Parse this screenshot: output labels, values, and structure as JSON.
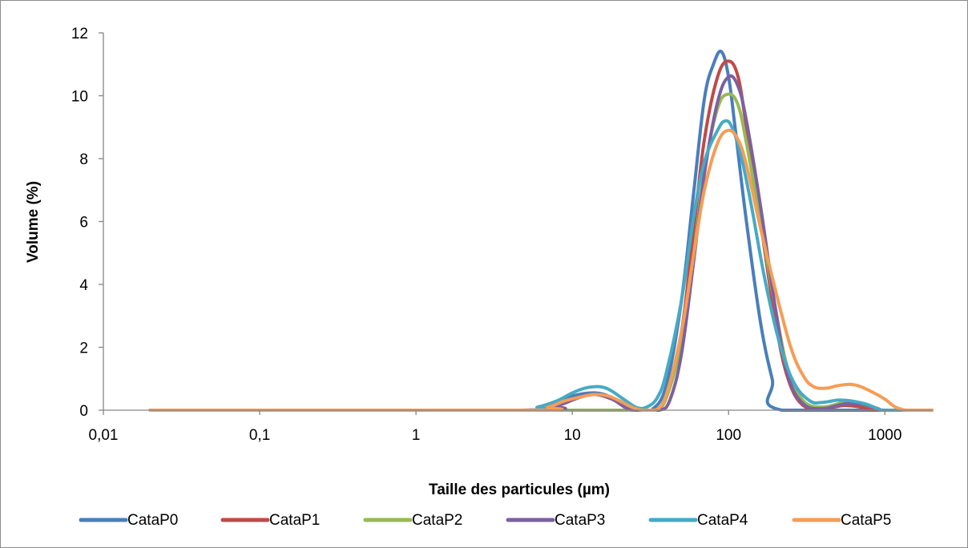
{
  "chart_data": {
    "type": "line",
    "xlabel": "Taille des particules (µm)",
    "ylabel": "Volume (%)",
    "xscale": "log",
    "xlim": [
      0.01,
      2000
    ],
    "ylim": [
      0,
      12
    ],
    "x_tick_labels": [
      "0,01",
      "0,1",
      "1",
      "10",
      "100",
      "1000"
    ],
    "x_tick_values": [
      0.01,
      0.1,
      1,
      10,
      100,
      1000
    ],
    "y_tick_labels": [
      "0",
      "2",
      "4",
      "6",
      "8",
      "10",
      "12"
    ],
    "y_tick_values": [
      0,
      2,
      4,
      6,
      8,
      10,
      12
    ],
    "grid": false,
    "legend_position": "bottom",
    "series": [
      {
        "name": "CataP0",
        "color": "#4a7ebb",
        "points": [
          [
            0.02,
            0
          ],
          [
            4.5,
            0
          ],
          [
            7,
            0.15
          ],
          [
            10,
            0.45
          ],
          [
            14,
            0.55
          ],
          [
            18,
            0.4
          ],
          [
            22,
            0.12
          ],
          [
            26,
            0
          ],
          [
            32,
            0
          ],
          [
            40,
            0.8
          ],
          [
            50,
            3.5
          ],
          [
            60,
            7
          ],
          [
            70,
            9.9
          ],
          [
            80,
            11
          ],
          [
            90,
            11.4
          ],
          [
            100,
            10.6
          ],
          [
            110,
            9
          ],
          [
            130,
            6
          ],
          [
            160,
            2.8
          ],
          [
            190,
            1
          ],
          [
            220,
            0
          ],
          [
            2000,
            0
          ]
        ]
      },
      {
        "name": "CataP1",
        "color": "#be4b48",
        "points": [
          [
            0.02,
            0
          ],
          [
            5,
            0
          ],
          [
            8,
            0.15
          ],
          [
            11,
            0.4
          ],
          [
            14,
            0.5
          ],
          [
            18,
            0.35
          ],
          [
            22,
            0.08
          ],
          [
            26,
            0
          ],
          [
            34,
            0
          ],
          [
            40,
            0.5
          ],
          [
            50,
            2.5
          ],
          [
            60,
            5.8
          ],
          [
            70,
            8.6
          ],
          [
            85,
            10.6
          ],
          [
            100,
            11.1
          ],
          [
            115,
            10.6
          ],
          [
            130,
            9
          ],
          [
            160,
            6
          ],
          [
            200,
            2.8
          ],
          [
            240,
            1
          ],
          [
            300,
            0.15
          ],
          [
            400,
            0.05
          ],
          [
            550,
            0.15
          ],
          [
            700,
            0.1
          ],
          [
            900,
            0
          ],
          [
            2000,
            0
          ]
        ]
      },
      {
        "name": "CataP2",
        "color": "#98b954",
        "points": [
          [
            0.02,
            0
          ],
          [
            10,
            0
          ],
          [
            14,
            0
          ],
          [
            18,
            0
          ],
          [
            26,
            0
          ],
          [
            34,
            0
          ],
          [
            40,
            0.4
          ],
          [
            50,
            2.2
          ],
          [
            60,
            5
          ],
          [
            70,
            7.6
          ],
          [
            85,
            9.6
          ],
          [
            100,
            10.05
          ],
          [
            115,
            9.7
          ],
          [
            130,
            8.5
          ],
          [
            160,
            6
          ],
          [
            200,
            3.2
          ],
          [
            240,
            1.3
          ],
          [
            300,
            0.3
          ],
          [
            400,
            0.1
          ],
          [
            550,
            0.25
          ],
          [
            700,
            0.2
          ],
          [
            900,
            0.05
          ],
          [
            1000,
            0
          ],
          [
            2000,
            0
          ]
        ]
      },
      {
        "name": "CataP3",
        "color": "#7d60a0",
        "points": [
          [
            0.02,
            0
          ],
          [
            5,
            0
          ],
          [
            8,
            0.15
          ],
          [
            11,
            0.4
          ],
          [
            14,
            0.5
          ],
          [
            18,
            0.35
          ],
          [
            22,
            0.08
          ],
          [
            26,
            0
          ],
          [
            36,
            0
          ],
          [
            42,
            0.3
          ],
          [
            50,
            1.8
          ],
          [
            60,
            4.8
          ],
          [
            70,
            7.5
          ],
          [
            85,
            9.8
          ],
          [
            100,
            10.6
          ],
          [
            115,
            10.3
          ],
          [
            130,
            9.2
          ],
          [
            160,
            6.5
          ],
          [
            200,
            3.2
          ],
          [
            240,
            1.1
          ],
          [
            300,
            0.2
          ],
          [
            400,
            0.05
          ],
          [
            550,
            0.2
          ],
          [
            700,
            0.2
          ],
          [
            900,
            0.05
          ],
          [
            1000,
            0
          ],
          [
            2000,
            0
          ]
        ]
      },
      {
        "name": "CataP4",
        "color": "#46aac5",
        "points": [
          [
            0.02,
            0
          ],
          [
            4.5,
            0
          ],
          [
            6,
            0.1
          ],
          [
            8,
            0.3
          ],
          [
            10,
            0.55
          ],
          [
            12,
            0.7
          ],
          [
            14,
            0.75
          ],
          [
            16,
            0.72
          ],
          [
            18,
            0.6
          ],
          [
            22,
            0.3
          ],
          [
            26,
            0.08
          ],
          [
            30,
            0.1
          ],
          [
            35,
            0.4
          ],
          [
            40,
            1.2
          ],
          [
            50,
            3.5
          ],
          [
            60,
            6.2
          ],
          [
            70,
            7.9
          ],
          [
            85,
            8.9
          ],
          [
            95,
            9.2
          ],
          [
            105,
            9.0
          ],
          [
            120,
            8.1
          ],
          [
            140,
            6.5
          ],
          [
            170,
            4.2
          ],
          [
            210,
            2.2
          ],
          [
            260,
            0.9
          ],
          [
            330,
            0.3
          ],
          [
            400,
            0.25
          ],
          [
            500,
            0.32
          ],
          [
            600,
            0.3
          ],
          [
            750,
            0.2
          ],
          [
            900,
            0.05
          ],
          [
            1000,
            0
          ],
          [
            2000,
            0
          ]
        ]
      },
      {
        "name": "CataP5",
        "color": "#f59d56",
        "points": [
          [
            0.02,
            0
          ],
          [
            5,
            0
          ],
          [
            7,
            0.1
          ],
          [
            9,
            0.3
          ],
          [
            12,
            0.45
          ],
          [
            14,
            0.5
          ],
          [
            17,
            0.45
          ],
          [
            20,
            0.3
          ],
          [
            24,
            0.1
          ],
          [
            28,
            0
          ],
          [
            34,
            0
          ],
          [
            40,
            0.5
          ],
          [
            50,
            2.5
          ],
          [
            60,
            5
          ],
          [
            70,
            7
          ],
          [
            85,
            8.5
          ],
          [
            100,
            8.9
          ],
          [
            115,
            8.6
          ],
          [
            130,
            7.8
          ],
          [
            160,
            5.8
          ],
          [
            200,
            3.8
          ],
          [
            250,
            2
          ],
          [
            300,
            1.1
          ],
          [
            350,
            0.75
          ],
          [
            420,
            0.7
          ],
          [
            500,
            0.78
          ],
          [
            600,
            0.82
          ],
          [
            700,
            0.75
          ],
          [
            850,
            0.55
          ],
          [
            1000,
            0.35
          ],
          [
            1150,
            0.12
          ],
          [
            1300,
            0.02
          ],
          [
            1400,
            0
          ],
          [
            2000,
            0
          ]
        ]
      }
    ]
  }
}
